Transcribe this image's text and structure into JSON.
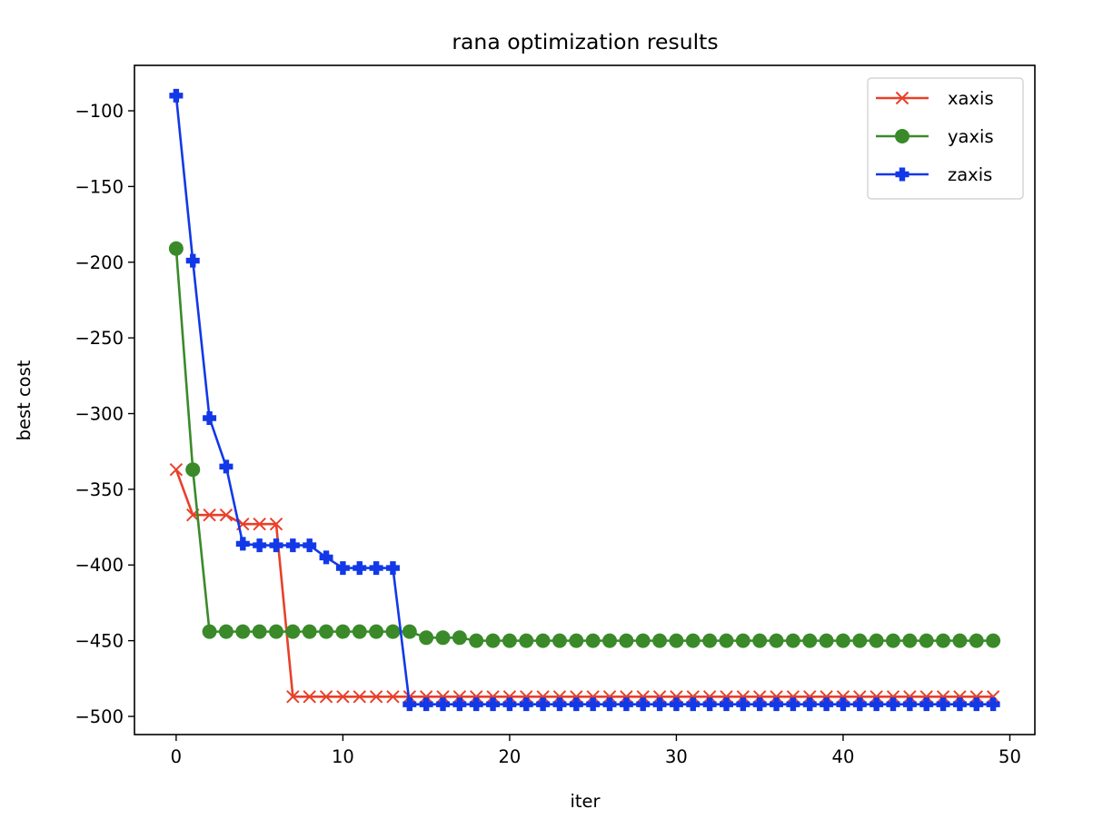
{
  "chart_data": {
    "type": "line",
    "title": "rana optimization results",
    "xlabel": "iter",
    "ylabel": "best cost",
    "xlim": [
      -2.5,
      51.5
    ],
    "ylim": [
      -512,
      -70
    ],
    "xticks": [
      0,
      10,
      20,
      30,
      40,
      50
    ],
    "yticks": [
      -100,
      -150,
      -200,
      -250,
      -300,
      -350,
      -400,
      -450,
      -500
    ],
    "grid": false,
    "legend_position": "top-right",
    "x": [
      0,
      1,
      2,
      3,
      4,
      5,
      6,
      7,
      8,
      9,
      10,
      11,
      12,
      13,
      14,
      15,
      16,
      17,
      18,
      19,
      20,
      21,
      22,
      23,
      24,
      25,
      26,
      27,
      28,
      29,
      30,
      31,
      32,
      33,
      34,
      35,
      36,
      37,
      38,
      39,
      40,
      41,
      42,
      43,
      44,
      45,
      46,
      47,
      48,
      49
    ],
    "series": [
      {
        "name": "xaxis",
        "color": "#e8402a",
        "marker": "x",
        "values": [
          -337,
          -367,
          -367,
          -367,
          -373,
          -373,
          -373,
          -487,
          -487,
          -487,
          -487,
          -487,
          -487,
          -487,
          -487,
          -487,
          -487,
          -487,
          -487,
          -487,
          -487,
          -487,
          -487,
          -487,
          -487,
          -487,
          -487,
          -487,
          -487,
          -487,
          -487,
          -487,
          -487,
          -487,
          -487,
          -487,
          -487,
          -487,
          -487,
          -487,
          -487,
          -487,
          -487,
          -487,
          -487,
          -487,
          -487,
          -487,
          -487,
          -487
        ]
      },
      {
        "name": "yaxis",
        "color": "#3a8a2a",
        "marker": "circle",
        "values": [
          -191,
          -337,
          -444,
          -444,
          -444,
          -444,
          -444,
          -444,
          -444,
          -444,
          -444,
          -444,
          -444,
          -444,
          -444,
          -448,
          -448,
          -448,
          -450,
          -450,
          -450,
          -450,
          -450,
          -450,
          -450,
          -450,
          -450,
          -450,
          -450,
          -450,
          -450,
          -450,
          -450,
          -450,
          -450,
          -450,
          -450,
          -450,
          -450,
          -450,
          -450,
          -450,
          -450,
          -450,
          -450,
          -450,
          -450,
          -450,
          -450,
          -450
        ]
      },
      {
        "name": "zaxis",
        "color": "#1238e8",
        "marker": "plus",
        "values": [
          -90,
          -199,
          -303,
          -335,
          -386,
          -387,
          -387,
          -387,
          -387,
          -395,
          -402,
          -402,
          -402,
          -402,
          -492,
          -492,
          -492,
          -492,
          -492,
          -492,
          -492,
          -492,
          -492,
          -492,
          -492,
          -492,
          -492,
          -492,
          -492,
          -492,
          -492,
          -492,
          -492,
          -492,
          -492,
          -492,
          -492,
          -492,
          -492,
          -492,
          -492,
          -492,
          -492,
          -492,
          -492,
          -492,
          -492,
          -492,
          -492,
          -492
        ]
      }
    ]
  }
}
